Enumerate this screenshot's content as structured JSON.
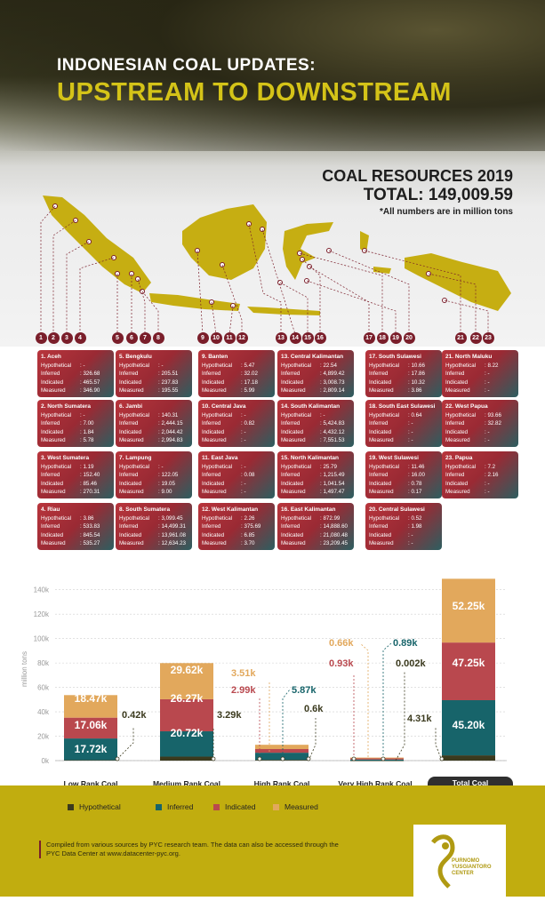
{
  "header": {
    "title_line1": "INDONESIAN COAL UPDATES:",
    "title_line2": "UPSTREAM TO DOWNSTREAM"
  },
  "resources": {
    "heading": "COAL RESOURCES 2019",
    "total": "TOTAL: 149,009.59",
    "note": "*All numbers are in million tons"
  },
  "labels": {
    "h": "Hypothetical",
    "i": "Inferred",
    "ind": "Indicated",
    "m": "Measured"
  },
  "provinces": [
    {
      "name": "1. Aceh",
      "h": "-",
      "i": "326.68",
      "ind": "465.57",
      "m": "346.90"
    },
    {
      "name": "2. North Sumatera",
      "h": "-",
      "i": "7.00",
      "ind": "1.84",
      "m": "5.78"
    },
    {
      "name": "3. West Sumatera",
      "h": "1.19",
      "i": "152.40",
      "ind": "85.46",
      "m": "270.31"
    },
    {
      "name": "4. Riau",
      "h": "3.86",
      "i": "533.83",
      "ind": "845.54",
      "m": "535.27"
    },
    {
      "name": "5. Bengkulu",
      "h": "-",
      "i": "205.51",
      "ind": "237.83",
      "m": "195.55"
    },
    {
      "name": "6. Jambi",
      "h": "140.31",
      "i": "2,444.15",
      "ind": "2,044.42",
      "m": "2,994.83"
    },
    {
      "name": "7. Lampung",
      "h": "-",
      "i": "122.05",
      "ind": "19.05",
      "m": "9.00"
    },
    {
      "name": "8. South Sumatera",
      "h": "3,099.45",
      "i": "14,499.31",
      "ind": "13,961.08",
      "m": "12,634.23"
    },
    {
      "name": "9. Banten",
      "h": "5.47",
      "i": "32.02",
      "ind": "17.18",
      "m": "5.99"
    },
    {
      "name": "10. Central Java",
      "h": "-",
      "i": "0.82",
      "ind": "-",
      "m": "-"
    },
    {
      "name": "11. East Java",
      "h": "-",
      "i": "0.08",
      "ind": "-",
      "m": "-"
    },
    {
      "name": "12. West Kalimantan",
      "h": "2.26",
      "i": "375.69",
      "ind": "6.85",
      "m": "3.70"
    },
    {
      "name": "13. Central Kalimantan",
      "h": "22.54",
      "i": "4,899.42",
      "ind": "3,008.73",
      "m": "2,809.14"
    },
    {
      "name": "14. South Kalimantan",
      "h": "-",
      "i": "5,424.83",
      "ind": "4,432.12",
      "m": "7,551.53"
    },
    {
      "name": "15. North Kalimantan",
      "h": "25.79",
      "i": "1,215.49",
      "ind": "1,041.54",
      "m": "1,497.47"
    },
    {
      "name": "16. East Kalimantan",
      "h": "872.99",
      "i": "14,888.60",
      "ind": "21,080.48",
      "m": "23,209.45"
    },
    {
      "name": "17. South Sulawesi",
      "h": "10.66",
      "i": "17.86",
      "ind": "10.32",
      "m": "3.86"
    },
    {
      "name": "18. South East Sulawesi",
      "h": "0.64",
      "i": "-",
      "ind": "-",
      "m": "-"
    },
    {
      "name": "19. West Sulawesi",
      "h": "11.46",
      "i": "16.00",
      "ind": "0.78",
      "m": "0.17"
    },
    {
      "name": "20. Central Sulawesi",
      "h": "0.52",
      "i": "1.98",
      "ind": "-",
      "m": "-"
    },
    {
      "name": "21. North Maluku",
      "h": "8.22",
      "i": "-",
      "ind": "-",
      "m": "-"
    },
    {
      "name": "22. West Papua",
      "h": "93.66",
      "i": "32.82",
      "ind": "-",
      "m": "-"
    },
    {
      "name": "23. Papua",
      "h": "7.2",
      "i": "2.16",
      "ind": "-",
      "m": "-"
    }
  ],
  "map_numbers": [
    "1",
    "2",
    "3",
    "4",
    "5",
    "6",
    "7",
    "8",
    "9",
    "10",
    "11",
    "12",
    "13",
    "14",
    "15",
    "16",
    "17",
    "18",
    "19",
    "20",
    "21",
    "22",
    "23"
  ],
  "chart_data": {
    "type": "bar",
    "stacked": true,
    "ylabel": "million tons",
    "ylim": [
      0,
      150000
    ],
    "yticks": [
      "0k",
      "20k",
      "40k",
      "60k",
      "80k",
      "100k",
      "120k",
      "140k"
    ],
    "categories": [
      "Low Rank Coal",
      "Medium Rank Coal",
      "High Rank Coal",
      "Very High Rank Coal",
      "Total Coal Resources"
    ],
    "series": [
      {
        "name": "Hypothetical",
        "color": "#3b3a1e",
        "values": [
          420,
          3290,
          600,
          2,
          4310
        ]
      },
      {
        "name": "Inferred",
        "color": "#17646a",
        "values": [
          17720,
          20720,
          5870,
          890,
          45200
        ]
      },
      {
        "name": "Indicated",
        "color": "#b9484e",
        "values": [
          17060,
          26270,
          2990,
          930,
          47250
        ]
      },
      {
        "name": "Measured",
        "color": "#e2a85c",
        "values": [
          18470,
          29620,
          3510,
          660,
          52250
        ]
      }
    ],
    "bar_labels": [
      {
        "cat": 0,
        "series": "Measured",
        "text": "18.47k"
      },
      {
        "cat": 0,
        "series": "Indicated",
        "text": "17.06k"
      },
      {
        "cat": 0,
        "series": "Inferred",
        "text": "17.72k"
      },
      {
        "cat": 0,
        "series": "Hypothetical",
        "text": "0.42k"
      },
      {
        "cat": 1,
        "series": "Measured",
        "text": "29.62k"
      },
      {
        "cat": 1,
        "series": "Indicated",
        "text": "26.27k"
      },
      {
        "cat": 1,
        "series": "Inferred",
        "text": "20.72k"
      },
      {
        "cat": 1,
        "series": "Hypothetical",
        "text": "3.29k"
      },
      {
        "cat": 2,
        "series": "Measured",
        "text": "3.51k"
      },
      {
        "cat": 2,
        "series": "Indicated",
        "text": "2.99k"
      },
      {
        "cat": 2,
        "series": "Inferred",
        "text": "5.87k"
      },
      {
        "cat": 2,
        "series": "Hypothetical",
        "text": "0.6k"
      },
      {
        "cat": 3,
        "series": "Measured",
        "text": "0.66k"
      },
      {
        "cat": 3,
        "series": "Indicated",
        "text": "0.93k"
      },
      {
        "cat": 3,
        "series": "Inferred",
        "text": "0.89k"
      },
      {
        "cat": 3,
        "series": "Hypothetical",
        "text": "0.002k"
      },
      {
        "cat": 4,
        "series": "Measured",
        "text": "52.25k"
      },
      {
        "cat": 4,
        "series": "Indicated",
        "text": "47.25k"
      },
      {
        "cat": 4,
        "series": "Inferred",
        "text": "45.20k"
      },
      {
        "cat": 4,
        "series": "Hypothetical",
        "text": "4.31k"
      }
    ]
  },
  "legend": {
    "hypothetical": "Hypothetical",
    "inferred": "Inferred",
    "indicated": "Indicated",
    "measured": "Measured"
  },
  "footer": {
    "note": "Compiled from various sources by PYC research team. The data can also be accessed through the PYC Data Center at www.datacenter-pyc.org.",
    "logo_text": "PURNOMO YUSGIANTORO CENTER"
  },
  "colors": {
    "gold": "#c1ad0f",
    "maroon": "#7a1e2a",
    "teal": "#17646a"
  }
}
